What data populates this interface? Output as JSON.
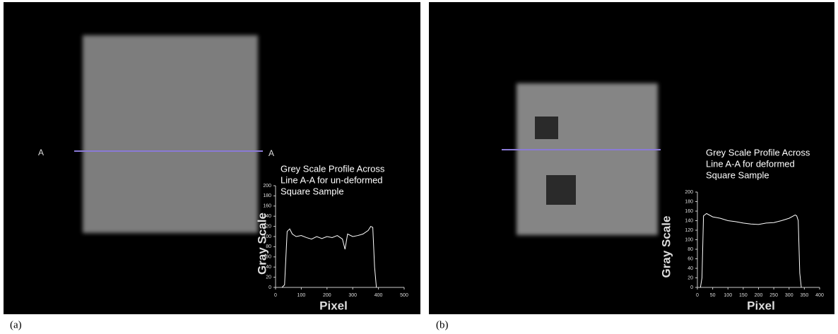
{
  "chart_data": [
    {
      "type": "line",
      "title": [
        "Grey Scale Profile Across",
        "Line  A-A for un-deformed",
        "Square Sample"
      ],
      "x_label": "Pixel",
      "y_label": "Gray Scale",
      "annotations": [
        "A",
        "A"
      ],
      "panel_label": "(a)",
      "x": [
        25,
        35,
        45,
        55,
        65,
        80,
        100,
        120,
        140,
        160,
        180,
        200,
        220,
        240,
        260,
        270,
        280,
        300,
        320,
        340,
        360,
        370,
        378,
        385,
        392
      ],
      "series": [
        {
          "color": "#ffffff",
          "values": [
            0,
            5,
            110,
            115,
            105,
            100,
            102,
            98,
            95,
            100,
            96,
            100,
            98,
            102,
            95,
            75,
            105,
            100,
            102,
            105,
            112,
            120,
            118,
            40,
            0
          ]
        }
      ],
      "xlim": [
        0,
        500
      ],
      "xticks": [
        0,
        100,
        200,
        300,
        400,
        500
      ],
      "ylim": [
        0,
        200
      ],
      "yticks": [
        0,
        20,
        40,
        60,
        80,
        100,
        120,
        140,
        160,
        180,
        200
      ]
    },
    {
      "type": "line",
      "title": [
        "Grey Scale Profile Across",
        "Line  A-A for deformed",
        "Square Sample"
      ],
      "x_label": "Pixel",
      "y_label": "Gray Scale",
      "panel_label": "(b)",
      "x": [
        10,
        15,
        20,
        30,
        50,
        75,
        100,
        125,
        150,
        175,
        200,
        225,
        250,
        275,
        300,
        320,
        325,
        330,
        335,
        340
      ],
      "series": [
        {
          "color": "#ffffff",
          "values": [
            0,
            20,
            150,
            155,
            148,
            145,
            140,
            138,
            135,
            133,
            132,
            135,
            136,
            140,
            145,
            152,
            150,
            140,
            30,
            0
          ]
        }
      ],
      "xlim": [
        0,
        400
      ],
      "xticks": [
        0,
        50,
        100,
        150,
        200,
        250,
        300,
        350,
        400
      ],
      "ylim": [
        0,
        200
      ],
      "yticks": [
        0,
        20,
        40,
        60,
        80,
        100,
        120,
        140,
        160,
        180,
        200
      ]
    }
  ]
}
